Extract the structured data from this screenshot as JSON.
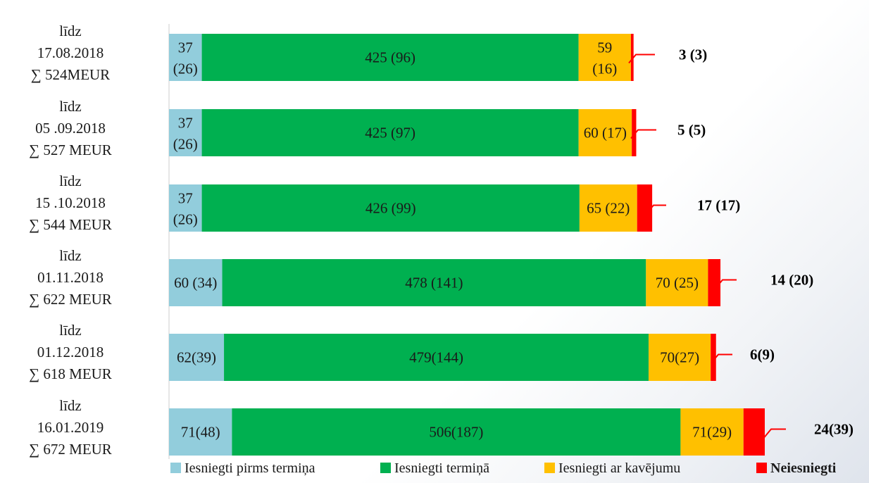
{
  "chart_data": {
    "type": "bar",
    "orientation": "horizontal",
    "stacked": true,
    "categories": [
      [
        "līdz",
        "17.08.2018",
        "∑ 524MEUR"
      ],
      [
        "līdz",
        "05 .09.2018",
        "∑ 527 MEUR"
      ],
      [
        "līdz",
        "15 .10.2018",
        "∑ 544 MEUR"
      ],
      [
        "līdz",
        "01.11.2018",
        "∑ 622 MEUR"
      ],
      [
        "līdz",
        "01.12.2018",
        "∑ 618 MEUR"
      ],
      [
        "līdz",
        "16.01.2019",
        "∑ 672 MEUR"
      ]
    ],
    "series": [
      {
        "name": "Iesniegti pirms termiņa",
        "color": "#92cddc",
        "values": [
          37,
          37,
          37,
          60,
          62,
          71
        ],
        "labels": [
          "37\n(26)",
          "37\n(26)",
          "37\n(26)",
          "60 (34)",
          "62(39)",
          "71(48)"
        ]
      },
      {
        "name": "Iesniegti termiņā",
        "color": "#00b050",
        "values": [
          425,
          425,
          426,
          478,
          479,
          506
        ],
        "labels": [
          "425 (96)",
          "425 (97)",
          "426 (99)",
          "478 (141)",
          "479(144)",
          "506(187)"
        ]
      },
      {
        "name": "Iesniegti ar kavējumu",
        "color": "#ffc000",
        "values": [
          59,
          60,
          65,
          70,
          70,
          71
        ],
        "labels": [
          "59\n(16)",
          "60 (17)",
          "65 (22)",
          "70 (25)",
          "70(27)",
          "71(29)"
        ]
      },
      {
        "name": "Neiesniegti",
        "color": "#ff0000",
        "values": [
          3,
          5,
          17,
          14,
          6,
          24
        ],
        "labels": [
          "3 (3)",
          "5 (5)",
          "17 (17)",
          "14 (20)",
          "6(9)",
          "24(39)"
        ]
      }
    ],
    "legend": {
      "placement": "bottom",
      "items": [
        {
          "label": "Iesniegti pirms termiņa",
          "color": "#92cddc",
          "bold": false
        },
        {
          "label": "Iesniegti termiņā",
          "color": "#00b050",
          "bold": false
        },
        {
          "label": "Iesniegti ar kavējumu",
          "color": "#ffc000",
          "bold": false
        },
        {
          "label": "Neiesniegti",
          "color": "#ff0000",
          "bold": true
        }
      ]
    },
    "xlim": [
      0,
      672
    ],
    "grid": false,
    "title": "",
    "xlabel": "",
    "ylabel": ""
  }
}
